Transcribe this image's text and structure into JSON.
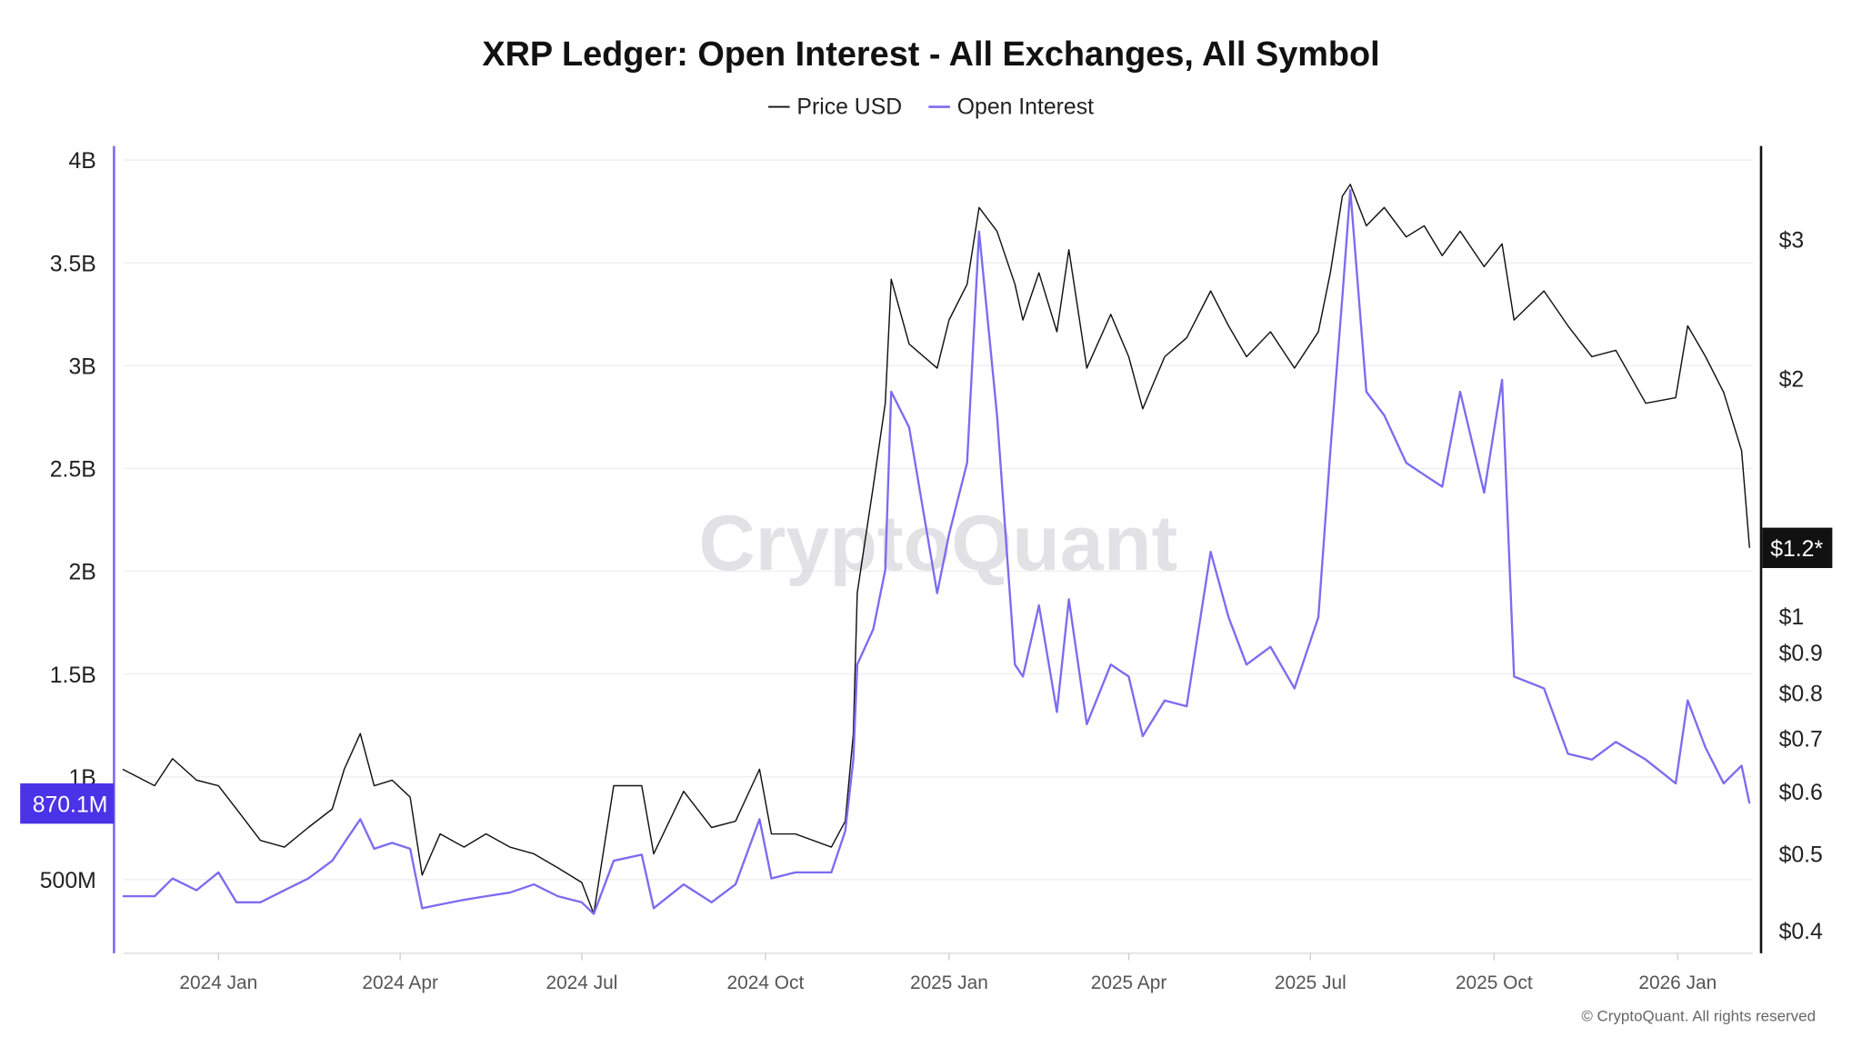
{
  "chart_data": {
    "type": "line",
    "title": "XRP Ledger: Open Interest - All Exchanges, All Symbol",
    "watermark": "CryptoQuant",
    "copyright": "© CryptoQuant. All rights reserved",
    "legend": {
      "placement": "top-center",
      "entries": [
        "Price USD",
        "Open Interest"
      ]
    },
    "grid": true,
    "x_axis": {
      "type": "date",
      "range": [
        "2023-11-14",
        "2026-02-06"
      ],
      "ticks": [
        {
          "date": "2024-01-01",
          "label": "2024 Jan"
        },
        {
          "date": "2024-04-01",
          "label": "2024 Apr"
        },
        {
          "date": "2024-07-01",
          "label": "2024 Jul"
        },
        {
          "date": "2024-10-01",
          "label": "2024 Oct"
        },
        {
          "date": "2025-01-01",
          "label": "2025 Jan"
        },
        {
          "date": "2025-04-01",
          "label": "2025 Apr"
        },
        {
          "date": "2025-07-01",
          "label": "2025 Jul"
        },
        {
          "date": "2025-10-01",
          "label": "2025 Oct"
        },
        {
          "date": "2026-01-01",
          "label": "2026 Jan"
        }
      ]
    },
    "left_axis": {
      "scale": "linear",
      "unit": "USD",
      "range": [
        0,
        4070000000
      ],
      "ticks": [
        {
          "value": 4000000000,
          "label": "4B"
        },
        {
          "value": 3500000000,
          "label": "3.5B"
        },
        {
          "value": 3000000000,
          "label": "3B"
        },
        {
          "value": 2500000000,
          "label": "2.5B"
        },
        {
          "value": 2000000000,
          "label": "2B"
        },
        {
          "value": 1500000000,
          "label": "1.5B"
        },
        {
          "value": 1000000000,
          "label": "1B"
        },
        {
          "value": 500000000,
          "label": "500M"
        }
      ],
      "current_badge": "870.1M",
      "color": "#7b6cf0",
      "badge_color": "#4a32e6"
    },
    "right_axis": {
      "scale": "log",
      "unit": "USD",
      "range": [
        0.38,
        4.0
      ],
      "ticks": [
        {
          "value": 3,
          "label": "$3"
        },
        {
          "value": 2,
          "label": "$2"
        },
        {
          "value": 1,
          "label": "$1"
        },
        {
          "value": 0.9,
          "label": "$0.9"
        },
        {
          "value": 0.8,
          "label": "$0.8"
        },
        {
          "value": 0.7,
          "label": "$0.7"
        },
        {
          "value": 0.6,
          "label": "$0.6"
        },
        {
          "value": 0.5,
          "label": "$0.5"
        },
        {
          "value": 0.4,
          "label": "$0.4"
        }
      ],
      "current_badge": "$1.2*",
      "color": "#111111"
    },
    "x": [
      "2023-11-14",
      "2023-11-30",
      "2023-12-09",
      "2023-12-21",
      "2024-01-01",
      "2024-01-10",
      "2024-01-22",
      "2024-02-03",
      "2024-02-15",
      "2024-02-27",
      "2024-03-04",
      "2024-03-12",
      "2024-03-19",
      "2024-03-28",
      "2024-04-06",
      "2024-04-12",
      "2024-04-21",
      "2024-05-03",
      "2024-05-14",
      "2024-05-26",
      "2024-06-07",
      "2024-06-19",
      "2024-07-01",
      "2024-07-07",
      "2024-07-17",
      "2024-07-31",
      "2024-08-06",
      "2024-08-21",
      "2024-09-04",
      "2024-09-16",
      "2024-09-28",
      "2024-10-04",
      "2024-10-16",
      "2024-11-03",
      "2024-11-10",
      "2024-11-14",
      "2024-11-16",
      "2024-11-24",
      "2024-11-30",
      "2024-12-03",
      "2024-12-12",
      "2024-12-26",
      "2025-01-01",
      "2025-01-10",
      "2025-01-16",
      "2025-01-25",
      "2025-02-03",
      "2025-02-07",
      "2025-02-15",
      "2025-02-24",
      "2025-03-02",
      "2025-03-11",
      "2025-03-23",
      "2025-04-01",
      "2025-04-08",
      "2025-04-19",
      "2025-04-30",
      "2025-05-12",
      "2025-05-21",
      "2025-05-30",
      "2025-06-11",
      "2025-06-23",
      "2025-07-05",
      "2025-07-11",
      "2025-07-17",
      "2025-07-21",
      "2025-07-29",
      "2025-08-07",
      "2025-08-18",
      "2025-08-27",
      "2025-09-05",
      "2025-09-14",
      "2025-09-26",
      "2025-10-05",
      "2025-10-11",
      "2025-10-26",
      "2025-11-07",
      "2025-11-19",
      "2025-12-01",
      "2025-12-16",
      "2025-12-31",
      "2026-01-06",
      "2026-01-15",
      "2026-01-24",
      "2026-02-02",
      "2026-02-06"
    ],
    "series": [
      {
        "name": "Price USD",
        "axis": "right",
        "color": "#111111",
        "values": [
          0.64,
          0.61,
          0.66,
          0.62,
          0.61,
          0.57,
          0.52,
          0.51,
          0.54,
          0.57,
          0.64,
          0.71,
          0.61,
          0.62,
          0.59,
          0.47,
          0.53,
          0.51,
          0.53,
          0.51,
          0.5,
          0.48,
          0.46,
          0.42,
          0.61,
          0.61,
          0.5,
          0.6,
          0.54,
          0.55,
          0.64,
          0.53,
          0.53,
          0.51,
          0.55,
          0.71,
          1.07,
          1.46,
          1.86,
          2.67,
          2.21,
          2.06,
          2.37,
          2.63,
          3.29,
          3.07,
          2.63,
          2.37,
          2.72,
          2.29,
          2.91,
          2.06,
          2.41,
          2.13,
          1.83,
          2.13,
          2.25,
          2.58,
          2.33,
          2.13,
          2.29,
          2.06,
          2.29,
          2.72,
          3.4,
          3.52,
          3.12,
          3.29,
          3.02,
          3.12,
          2.86,
          3.07,
          2.77,
          2.96,
          2.37,
          2.58,
          2.33,
          2.13,
          2.17,
          1.86,
          1.89,
          2.33,
          2.13,
          1.92,
          1.62,
          1.22
        ]
      },
      {
        "name": "Open Interest",
        "axis": "left",
        "color": "#7b6cf0",
        "values": [
          419000000,
          419000000,
          506000000,
          448000000,
          535000000,
          390000000,
          390000000,
          448000000,
          506000000,
          592000000,
          679000000,
          794000000,
          650000000,
          679000000,
          650000000,
          361000000,
          379000000,
          402000000,
          419000000,
          437000000,
          477000000,
          419000000,
          390000000,
          333000000,
          592000000,
          621000000,
          361000000,
          477000000,
          390000000,
          477000000,
          794000000,
          506000000,
          535000000,
          535000000,
          737000000,
          1084000000,
          1546000000,
          1718000000,
          2007000000,
          2873000000,
          2700000000,
          1893000000,
          2180000000,
          2527000000,
          3652000000,
          2758000000,
          1546000000,
          1488000000,
          1834000000,
          1315000000,
          1863000000,
          1256000000,
          1546000000,
          1488000000,
          1198000000,
          1371000000,
          1343000000,
          2094000000,
          1776000000,
          1546000000,
          1632000000,
          1430000000,
          1776000000,
          2585000000,
          3334000000,
          3854000000,
          2873000000,
          2758000000,
          2527000000,
          2469000000,
          2411000000,
          2873000000,
          2382000000,
          2931000000,
          1488000000,
          1430000000,
          1112000000,
          1084000000,
          1170000000,
          1084000000,
          968000000,
          1372000000,
          1141000000,
          968000000,
          1054000000,
          870100000
        ]
      }
    ]
  }
}
